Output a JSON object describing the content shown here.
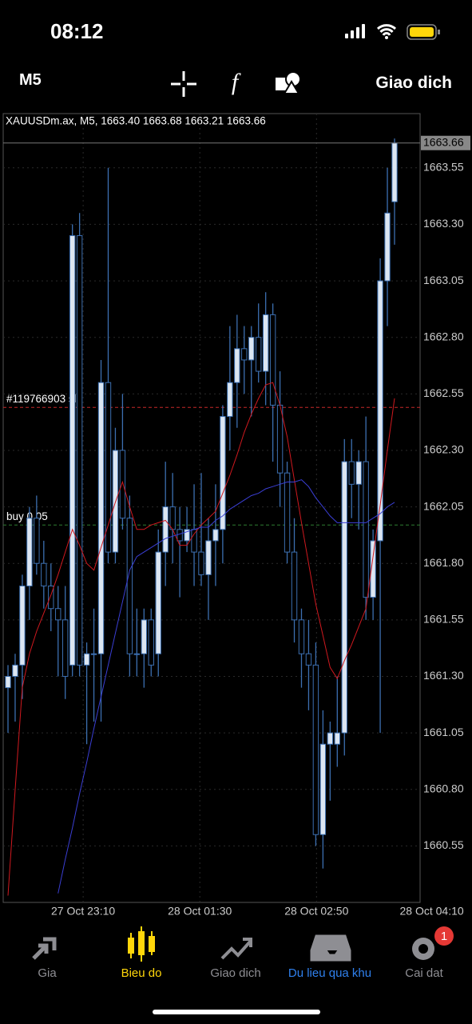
{
  "status": {
    "time": "08:12"
  },
  "toolbar": {
    "timeframe": "M5",
    "trade": "Giao dich"
  },
  "chart_data": {
    "type": "candlestick",
    "header": "XAUUSDm.ax, M5, 1663.40 1663.68 1663.21 1663.66",
    "up_color": "#dce6f2",
    "down_color": "#000000",
    "wick_color": "#3c6fb0",
    "ohlc": [
      [
        1661.25,
        1661.35,
        1661.05,
        1661.3
      ],
      [
        1661.3,
        1661.4,
        1661.1,
        1661.35
      ],
      [
        1661.35,
        1661.75,
        1661.2,
        1661.7
      ],
      [
        1661.7,
        1662.05,
        1661.55,
        1662.0
      ],
      [
        1662.0,
        1662.1,
        1661.75,
        1661.8
      ],
      [
        1661.8,
        1661.9,
        1661.6,
        1661.7
      ],
      [
        1661.7,
        1661.8,
        1661.5,
        1661.6
      ],
      [
        1661.6,
        1661.7,
        1661.3,
        1661.55
      ],
      [
        1661.55,
        1661.7,
        1661.2,
        1661.3
      ],
      [
        1661.35,
        1663.3,
        1661.3,
        1663.25
      ],
      [
        1663.25,
        1663.35,
        1661.3,
        1661.35
      ],
      [
        1661.35,
        1661.45,
        1661.0,
        1661.4
      ],
      [
        1661.4,
        1661.6,
        1661.1,
        1661.4
      ],
      [
        1661.4,
        1662.7,
        1661.1,
        1662.6
      ],
      [
        1662.6,
        1663.55,
        1661.8,
        1661.85
      ],
      [
        1661.85,
        1662.4,
        1661.8,
        1662.3
      ],
      [
        1662.3,
        1662.55,
        1661.95,
        1662.0
      ],
      [
        1662.0,
        1662.1,
        1661.3,
        1661.4
      ],
      [
        1661.4,
        1661.6,
        1661.3,
        1661.4
      ],
      [
        1661.4,
        1661.6,
        1661.25,
        1661.55
      ],
      [
        1661.55,
        1661.6,
        1661.3,
        1661.35
      ],
      [
        1661.4,
        1661.95,
        1661.3,
        1661.85
      ],
      [
        1661.85,
        1662.25,
        1661.7,
        1662.05
      ],
      [
        1662.05,
        1662.2,
        1661.8,
        1661.95
      ],
      [
        1661.95,
        1662.05,
        1661.65,
        1661.9
      ],
      [
        1661.9,
        1662.05,
        1661.85,
        1661.95
      ],
      [
        1661.95,
        1662.15,
        1661.7,
        1661.85
      ],
      [
        1661.85,
        1662.2,
        1661.7,
        1661.75
      ],
      [
        1661.75,
        1662.0,
        1661.55,
        1661.9
      ],
      [
        1661.9,
        1662.15,
        1661.7,
        1661.95
      ],
      [
        1661.95,
        1662.5,
        1661.8,
        1662.45
      ],
      [
        1662.45,
        1662.85,
        1662.3,
        1662.6
      ],
      [
        1662.6,
        1662.9,
        1662.4,
        1662.75
      ],
      [
        1662.75,
        1662.85,
        1662.55,
        1662.7
      ],
      [
        1662.7,
        1662.85,
        1662.45,
        1662.8
      ],
      [
        1662.8,
        1662.95,
        1662.6,
        1662.65
      ],
      [
        1662.65,
        1663.0,
        1662.5,
        1662.9
      ],
      [
        1662.9,
        1662.95,
        1662.25,
        1662.5
      ],
      [
        1662.5,
        1662.65,
        1662.05,
        1662.2
      ],
      [
        1662.2,
        1662.25,
        1661.8,
        1661.85
      ],
      [
        1661.85,
        1662.0,
        1661.45,
        1661.55
      ],
      [
        1661.55,
        1661.6,
        1661.25,
        1661.4
      ],
      [
        1661.4,
        1661.55,
        1661.15,
        1661.35
      ],
      [
        1661.35,
        1661.45,
        1660.55,
        1660.6
      ],
      [
        1660.6,
        1661.15,
        1660.45,
        1661.0
      ],
      [
        1661.0,
        1661.1,
        1660.75,
        1661.05
      ],
      [
        1661.0,
        1661.3,
        1660.9,
        1661.05
      ],
      [
        1661.05,
        1662.35,
        1660.95,
        1662.25
      ],
      [
        1662.25,
        1662.35,
        1662.0,
        1662.15
      ],
      [
        1662.15,
        1662.3,
        1661.95,
        1662.25
      ],
      [
        1662.25,
        1662.45,
        1661.55,
        1661.65
      ],
      [
        1661.65,
        1661.95,
        1661.55,
        1661.9
      ],
      [
        1661.9,
        1663.15,
        1661.05,
        1663.05
      ],
      [
        1663.05,
        1663.55,
        1662.85,
        1663.35
      ],
      [
        1663.4,
        1663.68,
        1663.21,
        1663.66
      ]
    ],
    "lines": [
      {
        "color": "#d0191f",
        "values": [
          1660.33,
          1660.8,
          1661.25,
          1661.4,
          1661.5,
          1661.58,
          1661.66,
          1661.75,
          1661.85,
          1661.95,
          1661.88,
          1661.8,
          1661.77,
          1661.87,
          1661.97,
          1662.07,
          1662.16,
          1662.05,
          1661.95,
          1661.95,
          1661.97,
          1661.98,
          1661.99,
          1661.95,
          1661.88,
          1661.88,
          1661.93,
          1661.97,
          1662.0,
          1662.03,
          1662.11,
          1662.19,
          1662.28,
          1662.38,
          1662.46,
          1662.53,
          1662.59,
          1662.6,
          1662.5,
          1662.36,
          1662.17,
          1661.98,
          1661.8,
          1661.62,
          1661.48,
          1661.34,
          1661.29,
          1661.37,
          1661.44,
          1661.52,
          1661.6,
          1661.83,
          1662.06,
          1662.3,
          1662.53
        ]
      },
      {
        "color": "#3b3fd6",
        "values": [
          null,
          null,
          null,
          null,
          null,
          null,
          null,
          1660.34,
          1660.49,
          1660.63,
          1660.78,
          1660.92,
          1661.07,
          1661.21,
          1661.35,
          1661.49,
          1661.63,
          1661.77,
          1661.83,
          1661.85,
          1661.87,
          1661.89,
          1661.91,
          1661.92,
          1661.93,
          1661.94,
          1661.95,
          1661.96,
          1661.96,
          1661.99,
          1662.01,
          1662.04,
          1662.06,
          1662.08,
          1662.1,
          1662.11,
          1662.13,
          1662.14,
          1662.15,
          1662.16,
          1662.16,
          1662.17,
          1662.14,
          1662.09,
          1662.05,
          1662.01,
          1661.98,
          1661.98,
          1661.98,
          1661.98,
          1661.98,
          1662.0,
          1662.02,
          1662.05,
          1662.07
        ]
      }
    ],
    "levels": [
      {
        "value": 1662.49,
        "label": "#119766903 sl",
        "color": "#c62828"
      },
      {
        "value": 1661.97,
        "label": "buy 0.05",
        "color": "#2e7d32"
      }
    ],
    "last_price": 1663.66,
    "xlim": [
      -0.67,
      57.57
    ],
    "xticks": [
      {
        "value": 10.5,
        "label": "27 Oct 23:10"
      },
      {
        "value": 26.8,
        "label": "28 Oct 01:30"
      },
      {
        "value": 43.1,
        "label": "28 Oct 02:50"
      },
      {
        "value": 59.2,
        "label": "28 Oct 04:10"
      }
    ],
    "ylim": [
      1660.3,
      1663.79
    ],
    "yticks": [
      1663.55,
      {
        "value": 1663.3,
        "label": "1663.30"
      },
      1663.05,
      {
        "value": 1662.8,
        "label": "1662.80"
      },
      1662.55,
      {
        "value": 1662.3,
        "label": "1662.30"
      },
      1662.05,
      {
        "value": 1661.8,
        "label": "1661.80"
      },
      1661.55,
      {
        "value": 1661.3,
        "label": "1661.30"
      },
      1661.05,
      {
        "value": 1660.8,
        "label": "1660.80"
      },
      1660.55
    ],
    "grid": true
  },
  "tabs": [
    {
      "label": "Gia"
    },
    {
      "label": "Bieu do"
    },
    {
      "label": "Giao dich"
    },
    {
      "label": "Du lieu qua khu"
    },
    {
      "label": "Cai dat",
      "badge": "1"
    }
  ]
}
